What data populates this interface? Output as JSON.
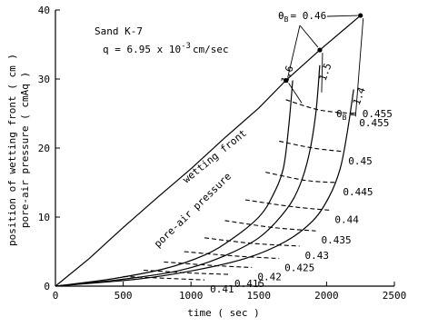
{
  "chart_data": {
    "type": "line",
    "xlabel": "time ( sec )",
    "ylabel_lines": [
      "position of wetting front ( cm )",
      "pore-air pressure ( cmAq )"
    ],
    "xlim": [
      0,
      2500
    ],
    "ylim": [
      0,
      40
    ],
    "xticks": [
      "0",
      "500",
      "1000",
      "1500",
      "2000",
      "2500"
    ],
    "yticks": [
      "0",
      "10",
      "20",
      "30",
      "40"
    ],
    "grid": false,
    "annotations": {
      "sample": "Sand K-7",
      "flux": "q = 6.95 x 10",
      "flux_exp": "-3",
      "flux_unit": "cm/sec",
      "theta_symbol": "θ",
      "theta_sub": "B",
      "theta_top_value": "= 0.46",
      "theta_right_value": "= 0.455"
    },
    "series": [
      {
        "name": "wetting front",
        "role": "wetting-front",
        "points": [
          [
            0,
            0
          ],
          [
            250,
            4
          ],
          [
            500,
            8.5
          ],
          [
            750,
            12.8
          ],
          [
            1000,
            17
          ],
          [
            1250,
            21.5
          ],
          [
            1500,
            25.8
          ],
          [
            1700,
            29.8
          ],
          [
            1950,
            34.2
          ],
          [
            2250,
            39.2
          ]
        ]
      },
      {
        "name": "1.6",
        "role": "pressure",
        "points": [
          [
            0,
            0
          ],
          [
            400,
            1
          ],
          [
            800,
            2.5
          ],
          [
            1100,
            4.5
          ],
          [
            1300,
            6.8
          ],
          [
            1500,
            10
          ],
          [
            1600,
            13
          ],
          [
            1680,
            17
          ],
          [
            1720,
            23
          ],
          [
            1750,
            29.8
          ]
        ]
      },
      {
        "name": "1.5",
        "role": "pressure",
        "points": [
          [
            0,
            0
          ],
          [
            500,
            1
          ],
          [
            900,
            2.2
          ],
          [
            1200,
            4
          ],
          [
            1500,
            7
          ],
          [
            1700,
            11
          ],
          [
            1800,
            14.5
          ],
          [
            1870,
            19
          ],
          [
            1920,
            25
          ],
          [
            1950,
            32
          ]
        ]
      },
      {
        "name": "1.4",
        "role": "pressure",
        "points": [
          [
            0,
            0
          ],
          [
            600,
            1
          ],
          [
            1000,
            2.2
          ],
          [
            1400,
            4
          ],
          [
            1700,
            6.5
          ],
          [
            1900,
            9.5
          ],
          [
            2020,
            13
          ],
          [
            2100,
            17
          ],
          [
            2150,
            22
          ],
          [
            2200,
            28.5
          ]
        ]
      }
    ],
    "pressure_curve_labels": [
      "1.6",
      "1.5",
      "1.4"
    ],
    "pore_air_label": "pore-air pressure",
    "wetting_front_label": "wetting front",
    "iso_theta": [
      {
        "label": "0.455",
        "points": [
          [
            1700,
            27
          ],
          [
            1950,
            25.5
          ],
          [
            2200,
            25
          ]
        ]
      },
      {
        "label": "0.45",
        "points": [
          [
            1650,
            21
          ],
          [
            1900,
            20
          ],
          [
            2120,
            19.5
          ]
        ]
      },
      {
        "label": "0.445",
        "points": [
          [
            1550,
            16.5
          ],
          [
            1850,
            15.3
          ],
          [
            2080,
            15
          ]
        ]
      },
      {
        "label": "0.44",
        "points": [
          [
            1400,
            12.5
          ],
          [
            1750,
            11.5
          ],
          [
            2020,
            11
          ]
        ]
      },
      {
        "label": "0.435",
        "points": [
          [
            1250,
            9.5
          ],
          [
            1600,
            8.5
          ],
          [
            1920,
            8
          ]
        ]
      },
      {
        "label": "0.43",
        "points": [
          [
            1100,
            7
          ],
          [
            1450,
            6.2
          ],
          [
            1800,
            5.8
          ]
        ]
      },
      {
        "label": "0.425",
        "points": [
          [
            950,
            5
          ],
          [
            1300,
            4.4
          ],
          [
            1650,
            4
          ]
        ]
      },
      {
        "label": "0.42",
        "points": [
          [
            800,
            3.5
          ],
          [
            1150,
            3
          ],
          [
            1450,
            2.7
          ]
        ]
      },
      {
        "label": "0.415",
        "points": [
          [
            650,
            2.3
          ],
          [
            1000,
            1.9
          ],
          [
            1280,
            1.7
          ]
        ]
      },
      {
        "label": "0.41",
        "points": [
          [
            500,
            1.4
          ],
          [
            850,
            1.1
          ],
          [
            1100,
            0.9
          ]
        ]
      }
    ],
    "marked_points": [
      [
        1700,
        29.8
      ],
      [
        1950,
        34.2
      ],
      [
        2250,
        39.2
      ]
    ]
  }
}
